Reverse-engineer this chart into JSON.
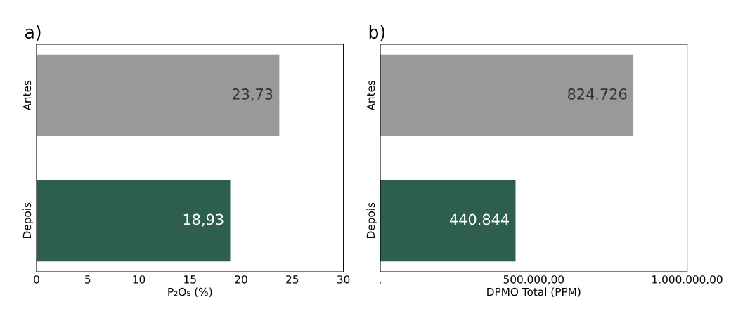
{
  "chart_data": [
    {
      "type": "bar",
      "orientation": "horizontal",
      "title": "a)",
      "xlabel": "P₂O₅ (%)",
      "categories": [
        "Antes",
        "Depois"
      ],
      "values": [
        23.73,
        18.93
      ],
      "colors": [
        "#999999",
        "#2d5e4f"
      ],
      "value_labels": [
        "23,73",
        "18,93"
      ],
      "xlim": [
        0,
        30
      ],
      "xticks": [
        0,
        5,
        10,
        15,
        20,
        25,
        30
      ],
      "grid": false,
      "legend": false
    },
    {
      "type": "bar",
      "orientation": "horizontal",
      "title": "b)",
      "xlabel": "DPMO Total (PPM)",
      "categories": [
        "Antes",
        "Depois"
      ],
      "values": [
        824726,
        440844
      ],
      "colors": [
        "#999999",
        "#2d5e4f"
      ],
      "value_labels": [
        "824.726",
        "440.844"
      ],
      "xlim": [
        0,
        1000000
      ],
      "xticks": [
        {
          "value": 0,
          "label": "."
        },
        {
          "value": 500000,
          "label": "500.000,00"
        },
        {
          "value": 1000000,
          "label": "1.000.000,00"
        }
      ],
      "grid": false,
      "legend": false
    }
  ]
}
